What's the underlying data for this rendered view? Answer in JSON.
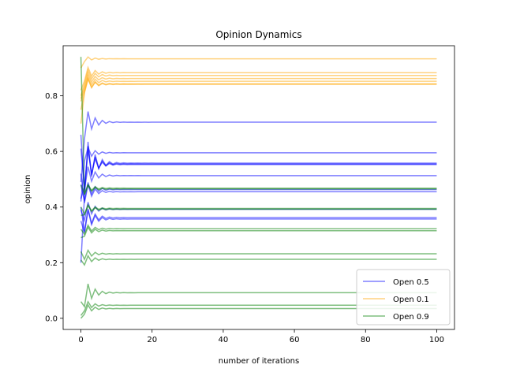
{
  "chart_data": {
    "type": "line",
    "title": "Opinion Dynamics",
    "xlabel": "number of iterations",
    "ylabel": "opinion",
    "xlim": [
      -5,
      105
    ],
    "ylim": [
      -0.04,
      0.98
    ],
    "xticks": [
      0,
      20,
      40,
      60,
      80,
      100
    ],
    "yticks": [
      0.0,
      0.2,
      0.4,
      0.6,
      0.8
    ],
    "grid": false,
    "legend_position": "lower-right",
    "series": [
      {
        "name": "Open 0.5",
        "color": "#0000ff",
        "alpha": 0.5,
        "lines": [
          {
            "start": 0.49,
            "final": 0.705,
            "amp": 0.06
          },
          {
            "start": 0.42,
            "final": 0.595,
            "amp": 0.03
          },
          {
            "start": 0.2,
            "final": 0.558,
            "amp": 0.12
          },
          {
            "start": 0.66,
            "final": 0.555,
            "amp": 0.1
          },
          {
            "start": 0.43,
            "final": 0.553,
            "amp": 0.08
          },
          {
            "start": 0.61,
            "final": 0.513,
            "amp": 0.05
          },
          {
            "start": 0.48,
            "final": 0.463,
            "amp": 0.04
          },
          {
            "start": 0.52,
            "final": 0.455,
            "amp": 0.04
          },
          {
            "start": 0.4,
            "final": 0.362,
            "amp": 0.05
          },
          {
            "start": 0.35,
            "final": 0.357,
            "amp": 0.05
          },
          {
            "start": 0.39,
            "final": 0.392,
            "amp": 0.04
          }
        ]
      },
      {
        "name": "Open 0.1",
        "color": "#ffa500",
        "alpha": 0.5,
        "lines": [
          {
            "start": 0.9,
            "final": 0.933,
            "amp": 0.01
          },
          {
            "start": 0.82,
            "final": 0.883,
            "amp": 0.03
          },
          {
            "start": 0.8,
            "final": 0.873,
            "amp": 0.03
          },
          {
            "start": 0.79,
            "final": 0.862,
            "amp": 0.03
          },
          {
            "start": 0.78,
            "final": 0.852,
            "amp": 0.03
          },
          {
            "start": 0.75,
            "final": 0.843,
            "amp": 0.03
          },
          {
            "start": 0.7,
            "final": 0.841,
            "amp": 0.03
          }
        ]
      },
      {
        "name": "Open 0.9",
        "color": "#008000",
        "alpha": 0.5,
        "lines": [
          {
            "start": 0.94,
            "final": 0.465,
            "amp": 0.02
          },
          {
            "start": 0.48,
            "final": 0.468,
            "amp": 0.02
          },
          {
            "start": 0.4,
            "final": 0.395,
            "amp": 0.02
          },
          {
            "start": 0.37,
            "final": 0.392,
            "amp": 0.02
          },
          {
            "start": 0.32,
            "final": 0.322,
            "amp": 0.02
          },
          {
            "start": 0.29,
            "final": 0.315,
            "amp": 0.02
          },
          {
            "start": 0.24,
            "final": 0.232,
            "amp": 0.02
          },
          {
            "start": 0.21,
            "final": 0.212,
            "amp": 0.02
          },
          {
            "start": 0.06,
            "final": 0.092,
            "amp": 0.05
          },
          {
            "start": 0.01,
            "final": 0.047,
            "amp": 0.02
          },
          {
            "start": 0.0,
            "final": 0.035,
            "amp": 0.02
          }
        ]
      }
    ]
  }
}
